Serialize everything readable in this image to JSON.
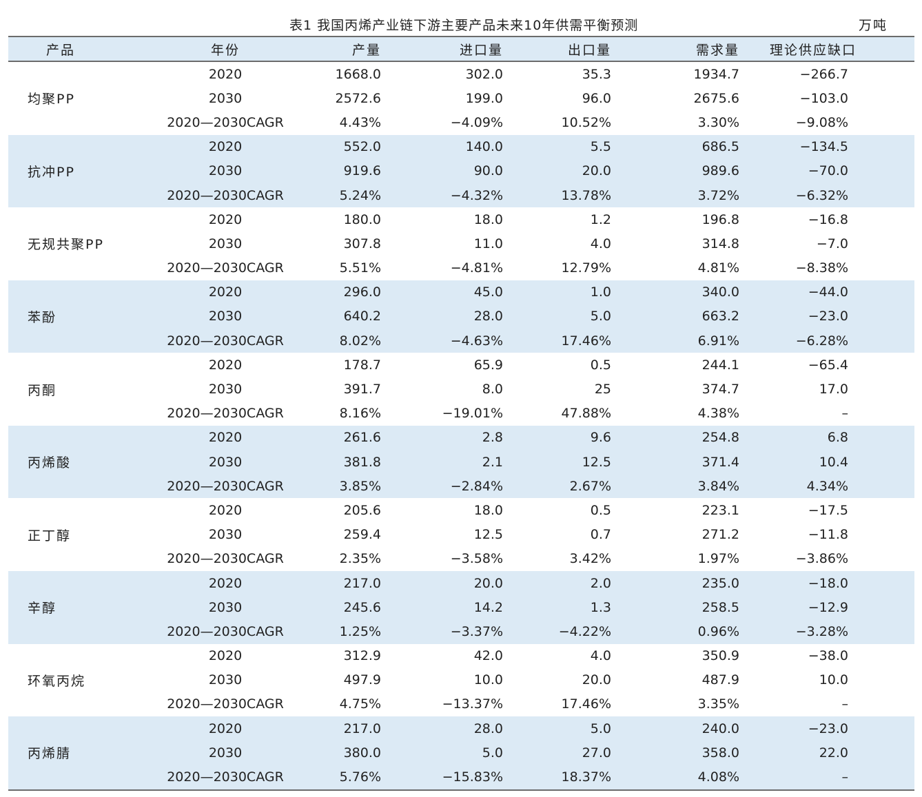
{
  "caption": {
    "title": "表1  我国丙烯产业链下游主要产品未来10年供需平衡预测",
    "unit": "万吨"
  },
  "headers": [
    "产品",
    "年份",
    "产量",
    "进口量",
    "出口量",
    "需求量",
    "理论供应缺口"
  ],
  "groups": [
    {
      "product": "均聚PP",
      "rows": [
        [
          "2020",
          "1668.0",
          "302.0",
          "35.3",
          "1934.7",
          "−266.7"
        ],
        [
          "2030",
          "2572.6",
          "199.0",
          "96.0",
          "2675.6",
          "−103.0"
        ],
        [
          "2020—2030CAGR",
          "4.43%",
          "−4.09%",
          "10.52%",
          "3.30%",
          "−9.08%"
        ]
      ]
    },
    {
      "product": "抗冲PP",
      "rows": [
        [
          "2020",
          "552.0",
          "140.0",
          "5.5",
          "686.5",
          "−134.5"
        ],
        [
          "2030",
          "919.6",
          "90.0",
          "20.0",
          "989.6",
          "−70.0"
        ],
        [
          "2020—2030CAGR",
          "5.24%",
          "−4.32%",
          "13.78%",
          "3.72%",
          "−6.32%"
        ]
      ]
    },
    {
      "product": "无规共聚PP",
      "rows": [
        [
          "2020",
          "180.0",
          "18.0",
          "1.2",
          "196.8",
          "−16.8"
        ],
        [
          "2030",
          "307.8",
          "11.0",
          "4.0",
          "314.8",
          "−7.0"
        ],
        [
          "2020—2030CAGR",
          "5.51%",
          "−4.81%",
          "12.79%",
          "4.81%",
          "−8.38%"
        ]
      ]
    },
    {
      "product": "苯酚",
      "rows": [
        [
          "2020",
          "296.0",
          "45.0",
          "1.0",
          "340.0",
          "−44.0"
        ],
        [
          "2030",
          "640.2",
          "28.0",
          "5.0",
          "663.2",
          "−23.0"
        ],
        [
          "2020—2030CAGR",
          "8.02%",
          "−4.63%",
          "17.46%",
          "6.91%",
          "−6.28%"
        ]
      ]
    },
    {
      "product": "丙酮",
      "rows": [
        [
          "2020",
          "178.7",
          "65.9",
          "0.5",
          "244.1",
          "−65.4"
        ],
        [
          "2030",
          "391.7",
          "8.0",
          "25",
          "374.7",
          "17.0"
        ],
        [
          "2020—2030CAGR",
          "8.16%",
          "−19.01%",
          "47.88%",
          "4.38%",
          "–"
        ]
      ]
    },
    {
      "product": "丙烯酸",
      "rows": [
        [
          "2020",
          "261.6",
          "2.8",
          "9.6",
          "254.8",
          "6.8"
        ],
        [
          "2030",
          "381.8",
          "2.1",
          "12.5",
          "371.4",
          "10.4"
        ],
        [
          "2020—2030CAGR",
          "3.85%",
          "−2.84%",
          "2.67%",
          "3.84%",
          "4.34%"
        ]
      ]
    },
    {
      "product": "正丁醇",
      "rows": [
        [
          "2020",
          "205.6",
          "18.0",
          "0.5",
          "223.1",
          "−17.5"
        ],
        [
          "2030",
          "259.4",
          "12.5",
          "0.7",
          "271.2",
          "−11.8"
        ],
        [
          "2020—2030CAGR",
          "2.35%",
          "−3.58%",
          "3.42%",
          "1.97%",
          "−3.86%"
        ]
      ]
    },
    {
      "product": "辛醇",
      "rows": [
        [
          "2020",
          "217.0",
          "20.0",
          "2.0",
          "235.0",
          "−18.0"
        ],
        [
          "2030",
          "245.6",
          "14.2",
          "1.3",
          "258.5",
          "−12.9"
        ],
        [
          "2020—2030CAGR",
          "1.25%",
          "−3.37%",
          "−4.22%",
          "0.96%",
          "−3.28%"
        ]
      ]
    },
    {
      "product": "环氧丙烷",
      "rows": [
        [
          "2020",
          "312.9",
          "42.0",
          "4.0",
          "350.9",
          "−38.0"
        ],
        [
          "2030",
          "497.9",
          "10.0",
          "20.0",
          "487.9",
          "10.0"
        ],
        [
          "2020—2030CAGR",
          "4.75%",
          "−13.37%",
          "17.46%",
          "3.35%",
          "–"
        ]
      ]
    },
    {
      "product": "丙烯腈",
      "rows": [
        [
          "2020",
          "217.0",
          "28.0",
          "5.0",
          "240.0",
          "−23.0"
        ],
        [
          "2030",
          "380.0",
          "5.0",
          "27.0",
          "358.0",
          "22.0"
        ],
        [
          "2020—2030CAGR",
          "5.76%",
          "−15.83%",
          "18.37%",
          "4.08%",
          "–"
        ]
      ]
    }
  ]
}
